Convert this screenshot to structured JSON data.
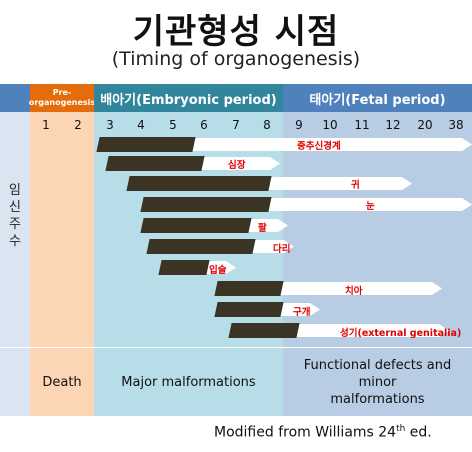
{
  "title": "기관형성 시점",
  "subtitle": "(Timing of organogenesis)",
  "periods": {
    "pre": "Pre-\norganogenesis",
    "embryonic": "배아기(Embryonic period)",
    "fetal": "태아기(Fetal period)"
  },
  "side_label": "임\n신\n주\n수",
  "weeks": [
    "1",
    "2",
    "3",
    "4",
    "5",
    "6",
    "7",
    "8",
    "9",
    "10",
    "11",
    "12",
    "20",
    "38"
  ],
  "organs": [
    {
      "name": "중추신경계",
      "bar_weeks": "3-5",
      "arrow_weeks": "6-38"
    },
    {
      "name": "심장",
      "bar_weeks": "3-6",
      "arrow_weeks": "6-8"
    },
    {
      "name": "귀",
      "bar_weeks": "4-8",
      "arrow_weeks": "9-20"
    },
    {
      "name": "눈",
      "bar_weeks": "4-8",
      "arrow_weeks": "9-38"
    },
    {
      "name": "팔",
      "bar_weeks": "4-7",
      "arrow_weeks": "7-8"
    },
    {
      "name": "다리",
      "bar_weeks": "4-7",
      "arrow_weeks": "7-8"
    },
    {
      "name": "입술",
      "bar_weeks": "5-6",
      "arrow_weeks": "6"
    },
    {
      "name": "치아",
      "bar_weeks": "6-8",
      "arrow_weeks": "9-38"
    },
    {
      "name": "구개",
      "bar_weeks": "6-8",
      "arrow_weeks": "8-9"
    },
    {
      "name": "성기(external  genitalia)",
      "bar_weeks": "7-9",
      "arrow_weeks": "9-38"
    }
  ],
  "outcomes": {
    "pre": "Death",
    "embryonic": "Major malformations",
    "fetal": "Functional defects and minor\nmalformations"
  },
  "credit": {
    "main": "Modified from Williams 24",
    "sup": "th",
    "tail": " ed."
  },
  "colors": {
    "pre_header": "#e46c0a",
    "embryo_header": "#31869b",
    "fetal_header": "#4f81bd",
    "pre_body": "#fcd5b4",
    "embryo_body": "#b7dee8",
    "fetal_body": "#b8cce4",
    "bar": "#3b3424",
    "label": "#e00000"
  }
}
